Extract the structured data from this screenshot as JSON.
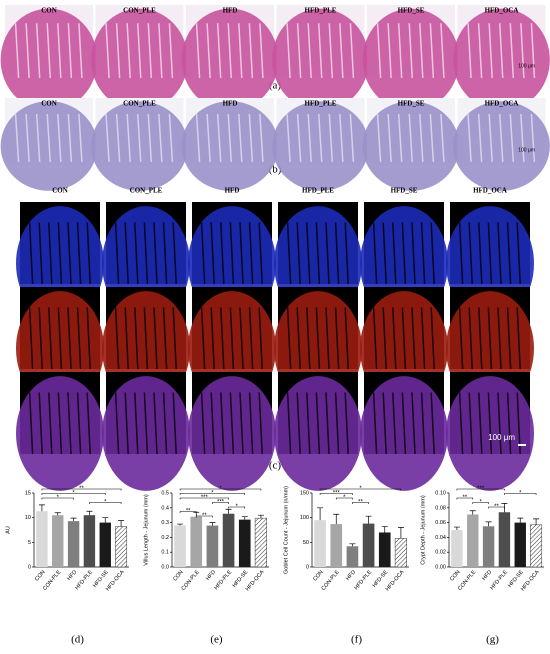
{
  "panels": [
    {
      "label": "(a)",
      "columns": [
        "CON",
        "CON_PLE",
        "HFD",
        "HFD_PLE",
        "HFD_SE",
        "HFD_OCA"
      ],
      "scale_bar": "100 μm"
    },
    {
      "label": "(b)",
      "columns": [
        "CON",
        "CON_PLE",
        "HFD",
        "HFD_PLE",
        "HFD_SE",
        "HFD_OCA"
      ],
      "scale_bar": "100 μm"
    },
    {
      "label": "(c)",
      "columns": [
        "CON",
        "CON_PLE",
        "HFD",
        "HFD_PLE",
        "HFD_SE",
        "HFD_OCA"
      ],
      "scale_bar": "100 μm"
    }
  ],
  "chart_data": [
    {
      "type": "bar",
      "label": "(d)",
      "ylabel": "AU",
      "categories": [
        "CON",
        "CON-PLE",
        "HFD",
        "HFD-PLE",
        "HFD-SE",
        "HFD-OCA"
      ],
      "values": [
        11.3,
        10.5,
        9.3,
        10.5,
        9.0,
        8.2
      ],
      "errors": [
        1.3,
        0.5,
        0.6,
        0.8,
        1.0,
        1.2
      ],
      "colors": [
        "#d9d9d9",
        "#a6a6a6",
        "#7f7f7f",
        "#4d4d4d",
        "#1a1a1a",
        "#ffffff"
      ],
      "hatched": "HFD-OCA",
      "ylim": [
        0,
        15
      ],
      "yticks": [
        0,
        5,
        10,
        15
      ],
      "brackets": [
        {
          "label": "**",
          "from": "CON",
          "to": "HFD-OCA"
        },
        {
          "label": "*",
          "from": "CON",
          "to": "HFD-SE"
        },
        {
          "label": "*",
          "from": "CON",
          "to": "HFD"
        },
        {
          "label": "*",
          "from": "HFD-PLE",
          "to": "HFD-OCA"
        }
      ]
    },
    {
      "type": "bar",
      "label": "(e)",
      "ylabel": "Villus Length - Jejunum (mm)",
      "categories": [
        "CON",
        "CON-PLE",
        "HFD",
        "HFD-PLE",
        "HFD-SE",
        "HFD-OCA"
      ],
      "values": [
        0.28,
        0.34,
        0.28,
        0.36,
        0.32,
        0.33
      ],
      "errors": [
        0.01,
        0.03,
        0.02,
        0.03,
        0.02,
        0.02
      ],
      "colors": [
        "#d9d9d9",
        "#a6a6a6",
        "#7f7f7f",
        "#4d4d4d",
        "#1a1a1a",
        "#ffffff"
      ],
      "hatched": "HFD-OCA",
      "ylim": [
        0,
        0.5
      ],
      "yticks": [
        {
          "value": 0,
          "label": "0.0"
        },
        0.1,
        0.2,
        0.3,
        0.4,
        0.5
      ],
      "brackets": [
        {
          "label": "*",
          "from": "CON",
          "to": "HFD-OCA"
        },
        {
          "label": "*",
          "from": "CON",
          "to": "HFD-SE"
        },
        {
          "label": "***",
          "from": "CON",
          "to": "HFD-PLE"
        },
        {
          "label": "***",
          "from": "HFD",
          "to": "HFD-PLE"
        },
        {
          "label": "*",
          "from": "HFD-PLE",
          "to": "HFD-SE"
        },
        {
          "label": "**",
          "from": "CON",
          "to": "CON-PLE"
        },
        {
          "label": "**",
          "from": "CON-PLE",
          "to": "HFD"
        }
      ]
    },
    {
      "type": "bar",
      "label": "(f)",
      "ylabel": "Goblet Cell Count - Jejunum (n/mm)",
      "categories": [
        "CON",
        "CON-PLE",
        "HFD",
        "HFD-PLE",
        "HFD-SE",
        "HFD-OCA"
      ],
      "values": [
        95,
        87,
        42,
        88,
        70,
        58
      ],
      "errors": [
        25,
        20,
        5,
        15,
        12,
        22
      ],
      "colors": [
        "#d9d9d9",
        "#a6a6a6",
        "#7f7f7f",
        "#4d4d4d",
        "#1a1a1a",
        "#ffffff"
      ],
      "hatched": "HFD-OCA",
      "ylim": [
        0,
        150
      ],
      "yticks": [
        0,
        50,
        100,
        150
      ],
      "brackets": [
        {
          "label": "*",
          "from": "CON",
          "to": "HFD-OCA"
        },
        {
          "label": "***",
          "from": "CON",
          "to": "HFD"
        },
        {
          "label": "*",
          "from": "CON-PLE",
          "to": "HFD"
        },
        {
          "label": "**",
          "from": "HFD",
          "to": "HFD-PLE"
        }
      ]
    },
    {
      "type": "bar",
      "label": "(g)",
      "ylabel": "Crypt Depth - Jejunum (mm)",
      "categories": [
        "CON",
        "CON-PLE",
        "HFD",
        "HFD-PLE",
        "HFD-SE",
        "HFD-OCA"
      ],
      "values": [
        0.05,
        0.071,
        0.055,
        0.074,
        0.06,
        0.057
      ],
      "errors": [
        0.004,
        0.005,
        0.006,
        0.012,
        0.006,
        0.008
      ],
      "colors": [
        "#d9d9d9",
        "#a6a6a6",
        "#7f7f7f",
        "#4d4d4d",
        "#1a1a1a",
        "#ffffff"
      ],
      "hatched": "HFD-OCA",
      "ylim": [
        0,
        0.1
      ],
      "yticks": [
        {
          "value": 0,
          "label": "0.00"
        },
        0.02,
        0.04,
        0.06,
        0.08,
        {
          "value": 0.1,
          "label": "0.10"
        }
      ],
      "brackets": [
        {
          "label": "***",
          "from": "CON",
          "to": "HFD-PLE"
        },
        {
          "label": "*",
          "from": "HFD-PLE",
          "to": "HFD-OCA"
        },
        {
          "label": "**",
          "from": "CON",
          "to": "CON-PLE"
        },
        {
          "label": "*",
          "from": "CON-PLE",
          "to": "HFD"
        },
        {
          "label": "**",
          "from": "HFD",
          "to": "HFD-PLE"
        }
      ]
    }
  ]
}
